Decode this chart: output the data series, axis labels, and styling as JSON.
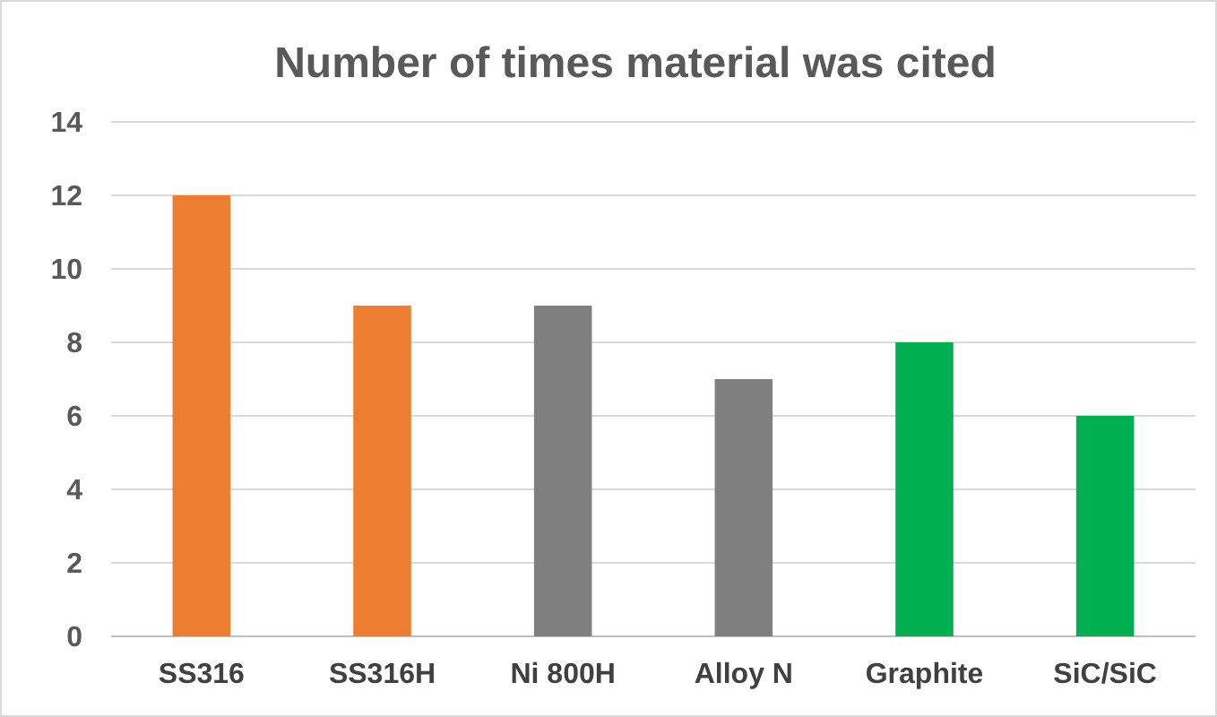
{
  "chart_data": {
    "type": "bar",
    "title": "Number of times material was cited",
    "categories": [
      "SS316",
      "SS316H",
      "Ni 800H",
      "Alloy N",
      "Graphite",
      "SiC/SiC"
    ],
    "values": [
      12,
      9,
      9,
      7,
      8,
      6
    ],
    "colors": [
      "#ed7d31",
      "#ed7d31",
      "#7f7f7f",
      "#7f7f7f",
      "#00b050",
      "#00b050"
    ],
    "ylim": [
      0,
      14
    ],
    "yticks": [
      0,
      2,
      4,
      6,
      8,
      10,
      12,
      14
    ],
    "grid": "y"
  }
}
